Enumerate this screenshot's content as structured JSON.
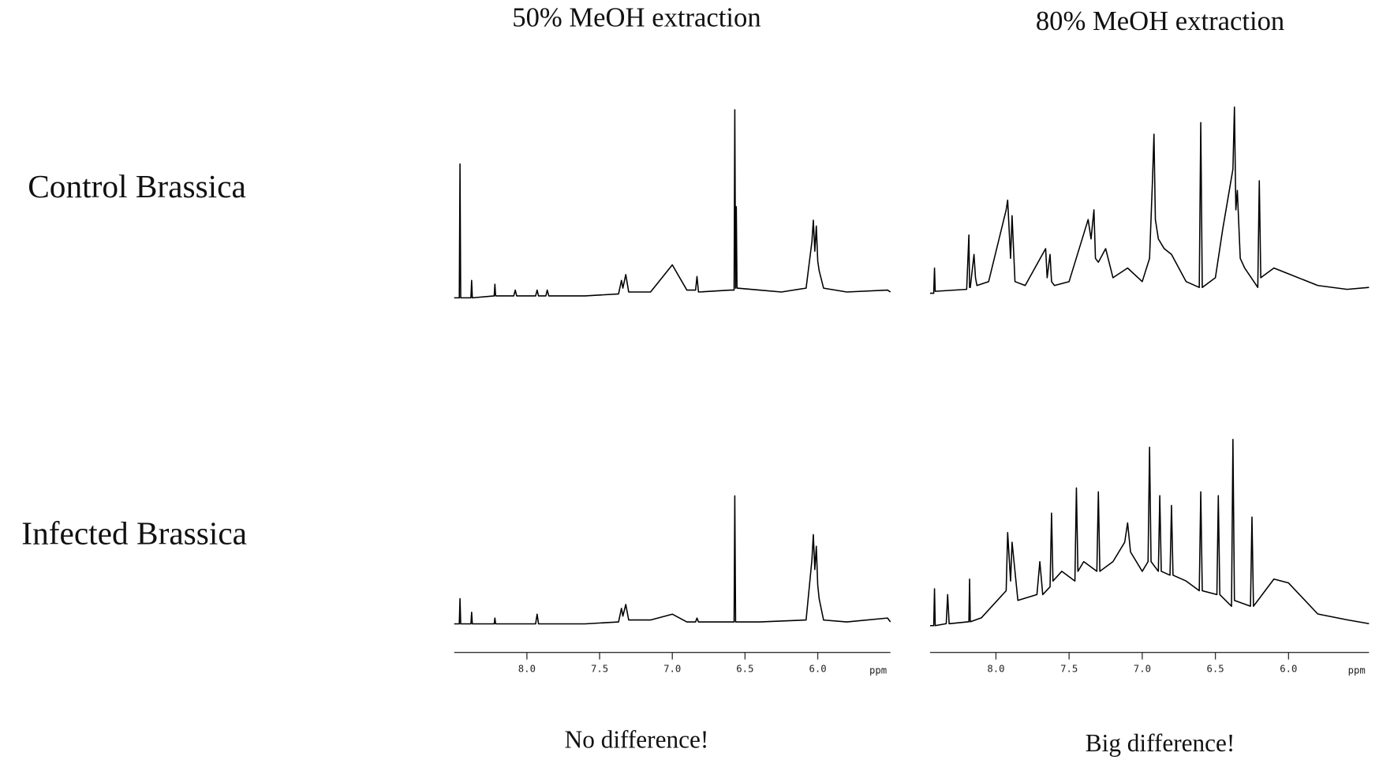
{
  "column_titles": [
    "50% MeOH extraction",
    "80% MeOH extraction"
  ],
  "row_labels": [
    "Control Brassica",
    "Infected Brassica"
  ],
  "captions": [
    "No difference!",
    "Big difference!"
  ],
  "chart_data": [
    {
      "type": "line",
      "color": "#000000",
      "xlim": [
        8.5,
        5.5
      ],
      "ylim": [
        0,
        100
      ],
      "x": [
        8.5,
        8.465,
        8.46,
        8.455,
        8.385,
        8.38,
        8.375,
        8.225,
        8.22,
        8.215,
        8.09,
        8.08,
        8.07,
        7.94,
        7.93,
        7.92,
        7.87,
        7.86,
        7.85,
        7.6,
        7.37,
        7.35,
        7.34,
        7.32,
        7.3,
        7.15,
        7.0,
        6.9,
        6.84,
        6.83,
        6.82,
        6.6,
        6.575,
        6.57,
        6.565,
        6.56,
        6.555,
        6.4,
        6.25,
        6.08,
        6.04,
        6.03,
        6.02,
        6.01,
        6.0,
        5.99,
        5.96,
        5.8,
        5.52,
        5.5
      ],
      "values": [
        1,
        1,
        70,
        1,
        1,
        10,
        1,
        2,
        8,
        2,
        2,
        5,
        2,
        2,
        5,
        2,
        2,
        5,
        2,
        2,
        3,
        10,
        6,
        13,
        4,
        4,
        18,
        5,
        5,
        12,
        4,
        5,
        5,
        98,
        6,
        48,
        6,
        5,
        4,
        6,
        30,
        41,
        25,
        38,
        20,
        15,
        6,
        4,
        5,
        4
      ]
    },
    {
      "type": "line",
      "color": "#000000",
      "xlim": [
        8.45,
        5.45
      ],
      "ylim": [
        0,
        100
      ],
      "x": [
        8.45,
        8.425,
        8.42,
        8.415,
        8.2,
        8.185,
        8.18,
        8.175,
        8.15,
        8.14,
        8.13,
        8.05,
        7.93,
        7.92,
        7.9,
        7.89,
        7.87,
        7.8,
        7.66,
        7.65,
        7.63,
        7.62,
        7.6,
        7.5,
        7.37,
        7.35,
        7.33,
        7.32,
        7.3,
        7.25,
        7.2,
        7.1,
        7.0,
        6.95,
        6.93,
        6.92,
        6.91,
        6.89,
        6.85,
        6.8,
        6.75,
        6.7,
        6.61,
        6.6,
        6.59,
        6.5,
        6.45,
        6.38,
        6.37,
        6.36,
        6.35,
        6.33,
        6.3,
        6.21,
        6.2,
        6.19,
        6.1,
        6.0,
        5.8,
        5.6,
        5.45
      ],
      "values": [
        2,
        2,
        15,
        3,
        4,
        32,
        5,
        5,
        22,
        10,
        6,
        8,
        45,
        50,
        20,
        42,
        8,
        6,
        25,
        10,
        22,
        8,
        6,
        8,
        40,
        30,
        45,
        20,
        18,
        25,
        10,
        15,
        8,
        20,
        60,
        84,
        40,
        30,
        25,
        22,
        15,
        8,
        5,
        90,
        5,
        10,
        35,
        66,
        98,
        45,
        55,
        20,
        15,
        5,
        60,
        10,
        15,
        12,
        6,
        4,
        5
      ]
    },
    {
      "type": "line",
      "color": "#000000",
      "xlim": [
        8.5,
        5.5
      ],
      "ylim": [
        0,
        100
      ],
      "xlabel": "ppm",
      "xticks": [
        {
          "value": 8,
          "label": "8.0"
        },
        {
          "value": 7.5,
          "label": "7.5"
        },
        {
          "value": 7,
          "label": "7.0"
        },
        {
          "value": 6.5,
          "label": "6.5"
        },
        {
          "value": 6,
          "label": "6.0"
        }
      ],
      "x": [
        8.5,
        8.465,
        8.46,
        8.455,
        8.385,
        8.38,
        8.375,
        8.225,
        8.22,
        8.215,
        7.94,
        7.93,
        7.92,
        7.6,
        7.37,
        7.35,
        7.34,
        7.32,
        7.3,
        7.15,
        7.0,
        6.9,
        6.84,
        6.83,
        6.82,
        6.6,
        6.575,
        6.57,
        6.565,
        6.4,
        6.08,
        6.04,
        6.03,
        6.02,
        6.01,
        6.0,
        5.99,
        5.96,
        5.8,
        5.52,
        5.5
      ],
      "values": [
        2,
        2,
        15,
        2,
        2,
        8,
        2,
        2,
        5,
        2,
        2,
        7,
        2,
        2,
        3,
        10,
        6,
        12,
        4,
        4,
        7,
        3,
        3,
        5,
        3,
        3,
        3,
        68,
        3,
        3,
        4,
        35,
        48,
        30,
        42,
        22,
        15,
        4,
        3,
        5,
        3
      ]
    },
    {
      "type": "line",
      "color": "#000000",
      "xlim": [
        8.45,
        5.45
      ],
      "ylim": [
        0,
        100
      ],
      "xlabel": "ppm",
      "xticks": [
        {
          "value": 8,
          "label": "8.0"
        },
        {
          "value": 7.5,
          "label": "7.5"
        },
        {
          "value": 7,
          "label": "7.0"
        },
        {
          "value": 6.5,
          "label": "6.5"
        },
        {
          "value": 6,
          "label": "6.0"
        }
      ],
      "x": [
        8.45,
        8.425,
        8.42,
        8.415,
        8.34,
        8.33,
        8.32,
        8.185,
        8.18,
        8.175,
        8.1,
        7.93,
        7.92,
        7.9,
        7.89,
        7.85,
        7.72,
        7.7,
        7.68,
        7.63,
        7.62,
        7.61,
        7.55,
        7.46,
        7.45,
        7.44,
        7.4,
        7.31,
        7.3,
        7.29,
        7.2,
        7.12,
        7.1,
        7.08,
        7.0,
        6.96,
        6.95,
        6.94,
        6.89,
        6.88,
        6.87,
        6.81,
        6.8,
        6.79,
        6.7,
        6.61,
        6.6,
        6.59,
        6.49,
        6.48,
        6.47,
        6.39,
        6.38,
        6.37,
        6.26,
        6.25,
        6.24,
        6.1,
        6.0,
        5.8,
        5.6,
        5.45
      ],
      "values": [
        2,
        2,
        21,
        2,
        3,
        18,
        3,
        4,
        26,
        4,
        6,
        20,
        50,
        25,
        45,
        15,
        18,
        35,
        18,
        22,
        60,
        25,
        30,
        25,
        73,
        30,
        35,
        30,
        71,
        30,
        35,
        45,
        55,
        40,
        30,
        35,
        94,
        35,
        30,
        69,
        30,
        28,
        64,
        28,
        25,
        20,
        71,
        20,
        18,
        69,
        18,
        12,
        98,
        15,
        12,
        58,
        12,
        26,
        24,
        8,
        5,
        3
      ]
    }
  ]
}
